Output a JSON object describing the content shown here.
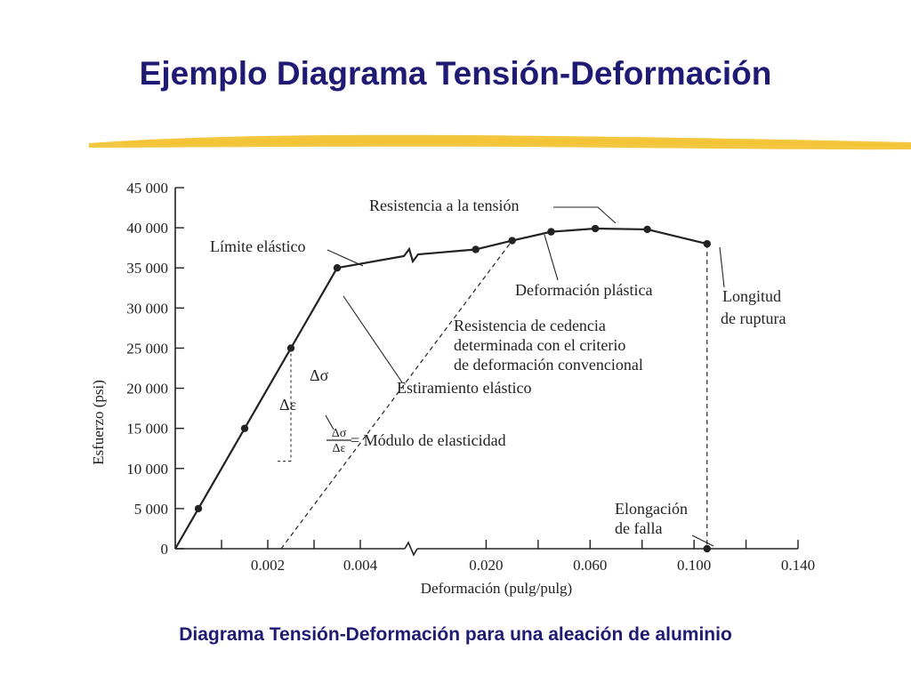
{
  "slide": {
    "title": "Ejemplo Diagrama Tensión-Deformación",
    "caption": "Diagrama Tensión-Deformación para una aleación de aluminio"
  },
  "colors": {
    "title": "#1f1a73",
    "brush": "#f2c12e",
    "ink": "#222222"
  },
  "chart_data": {
    "type": "line",
    "xlabel": "Deformación (pulg/pulg)",
    "ylabel": "Esfuerzo (psi)",
    "ylim": [
      0,
      45000
    ],
    "y_ticks": [
      {
        "value": 0,
        "label": "0"
      },
      {
        "value": 5000,
        "label": "5 000"
      },
      {
        "value": 10000,
        "label": "10 000"
      },
      {
        "value": 15000,
        "label": "15 000"
      },
      {
        "value": 20000,
        "label": "20 000"
      },
      {
        "value": 25000,
        "label": "25 000"
      },
      {
        "value": 30000,
        "label": "30 000"
      },
      {
        "value": 35000,
        "label": "35 000"
      },
      {
        "value": 40000,
        "label": "40 000"
      },
      {
        "value": 45000,
        "label": "45 000"
      }
    ],
    "x_axis_segments": [
      {
        "xlim": [
          0,
          0.005
        ],
        "ticks": [
          {
            "value": 0.001,
            "label": ""
          },
          {
            "value": 0.002,
            "label": "0.002"
          },
          {
            "value": 0.003,
            "label": ""
          },
          {
            "value": 0.004,
            "label": "0.004"
          }
        ]
      },
      {
        "xlim": [
          0.0,
          0.14
        ],
        "ticks": [
          {
            "value": 0.02,
            "label": "0.020"
          },
          {
            "value": 0.04,
            "label": ""
          },
          {
            "value": 0.06,
            "label": "0.060"
          },
          {
            "value": 0.08,
            "label": ""
          },
          {
            "value": 0.1,
            "label": "0.100"
          },
          {
            "value": 0.12,
            "label": ""
          },
          {
            "value": 0.14,
            "label": "0.140"
          }
        ]
      }
    ],
    "series": [
      {
        "elastic_points": [
          {
            "x": 0.0,
            "y": 0
          },
          {
            "x": 0.0005,
            "y": 5000
          },
          {
            "x": 0.0015,
            "y": 15000
          },
          {
            "x": 0.0025,
            "y": 25000
          },
          {
            "x": 0.0035,
            "y": 35000
          }
        ],
        "plastic_points": [
          {
            "x": 0.016,
            "y": 37300
          },
          {
            "x": 0.03,
            "y": 38400
          },
          {
            "x": 0.045,
            "y": 39500
          },
          {
            "x": 0.062,
            "y": 39900
          },
          {
            "x": 0.082,
            "y": 39800
          },
          {
            "x": 0.105,
            "y": 38000
          }
        ],
        "failure_point": {
          "x": 0.105,
          "y": 0
        }
      }
    ],
    "annotations": {
      "tensile_strength": "Resistencia a la tensión",
      "elastic_limit": "Límite elástico",
      "plastic_deformation": "Deformación plástica",
      "rupture_strength": [
        "Longitud",
        "de ruptura"
      ],
      "yield_strength": [
        "Resistencia de cedencia",
        "determinada con el criterio",
        "de deformación convencional"
      ],
      "elastic_stretch": "Estiramiento elástico",
      "delta_sigma": "Δσ",
      "delta_epsilon": "Δε",
      "modulus_label": "= Módulo de elasticidad",
      "elongation_at_failure": [
        "Elongación",
        "de falla"
      ]
    }
  }
}
